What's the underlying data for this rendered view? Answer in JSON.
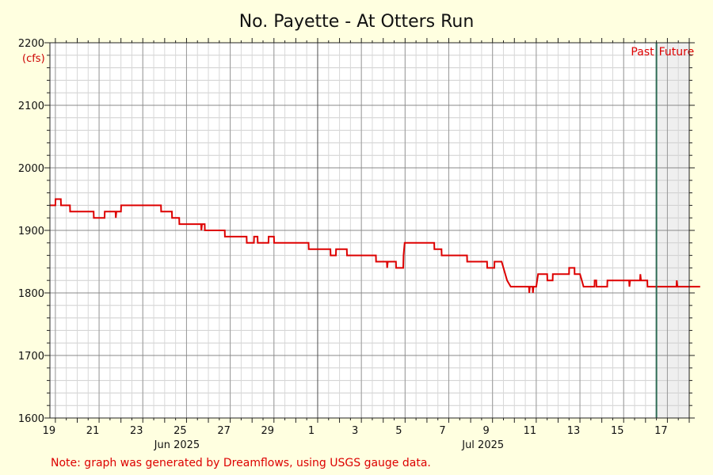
{
  "chart_data": {
    "type": "line",
    "title": "No. Payette - At Otters Run",
    "ylabel": "(cfs)",
    "xlabel": "",
    "ylim": [
      1600,
      2200
    ],
    "xlim": [
      "2025-06-18T18:00",
      "2025-07-18T00:00"
    ],
    "yticks": [
      1600,
      1700,
      1800,
      1900,
      2000,
      2100,
      2200
    ],
    "x_day_ticks": [
      {
        "date": "2025-06-19",
        "label": "19"
      },
      {
        "date": "2025-06-21",
        "label": "21"
      },
      {
        "date": "2025-06-23",
        "label": "23"
      },
      {
        "date": "2025-06-25",
        "label": "25"
      },
      {
        "date": "2025-06-27",
        "label": "27"
      },
      {
        "date": "2025-06-29",
        "label": "29"
      },
      {
        "date": "2025-07-01",
        "label": "1"
      },
      {
        "date": "2025-07-03",
        "label": "3"
      },
      {
        "date": "2025-07-05",
        "label": "5"
      },
      {
        "date": "2025-07-07",
        "label": "7"
      },
      {
        "date": "2025-07-09",
        "label": "9"
      },
      {
        "date": "2025-07-11",
        "label": "11"
      },
      {
        "date": "2025-07-13",
        "label": "13"
      },
      {
        "date": "2025-07-15",
        "label": "15"
      },
      {
        "date": "2025-07-17",
        "label": "17"
      }
    ],
    "x_month_labels": [
      {
        "date": "2025-06-25",
        "label": "Jun 2025"
      },
      {
        "date": "2025-07-09",
        "label": "Jul 2025"
      }
    ],
    "month_boundary": "2025-07-01",
    "now": "2025-07-16T12:00",
    "past_label": "Past",
    "future_label": "Future",
    "grid": true,
    "series": [
      {
        "color": "#dd0000",
        "points": [
          [
            "2025-06-18T18:00",
            1940
          ],
          [
            "2025-06-19T00:00",
            1940
          ],
          [
            "2025-06-19T00:10",
            1950
          ],
          [
            "2025-06-19T06:00",
            1950
          ],
          [
            "2025-06-19T06:10",
            1940
          ],
          [
            "2025-06-19T16:00",
            1940
          ],
          [
            "2025-06-19T16:10",
            1930
          ],
          [
            "2025-06-20T18:00",
            1930
          ],
          [
            "2025-06-20T18:10",
            1920
          ],
          [
            "2025-06-21T06:00",
            1920
          ],
          [
            "2025-06-21T06:10",
            1930
          ],
          [
            "2025-06-21T18:00",
            1930
          ],
          [
            "2025-06-21T18:20",
            1920
          ],
          [
            "2025-06-21T19:00",
            1930
          ],
          [
            "2025-06-22T00:00",
            1930
          ],
          [
            "2025-06-22T00:10",
            1940
          ],
          [
            "2025-06-23T20:00",
            1940
          ],
          [
            "2025-06-23T20:10",
            1930
          ],
          [
            "2025-06-24T08:00",
            1930
          ],
          [
            "2025-06-24T08:10",
            1920
          ],
          [
            "2025-06-24T16:00",
            1920
          ],
          [
            "2025-06-24T16:10",
            1910
          ],
          [
            "2025-06-25T16:00",
            1910
          ],
          [
            "2025-06-25T16:20",
            1900
          ],
          [
            "2025-06-25T17:00",
            1910
          ],
          [
            "2025-06-25T20:00",
            1910
          ],
          [
            "2025-06-25T20:10",
            1900
          ],
          [
            "2025-06-26T18:00",
            1900
          ],
          [
            "2025-06-26T18:10",
            1890
          ],
          [
            "2025-06-27T18:00",
            1890
          ],
          [
            "2025-06-27T18:10",
            1880
          ],
          [
            "2025-06-28T02:00",
            1880
          ],
          [
            "2025-06-28T02:10",
            1890
          ],
          [
            "2025-06-28T06:00",
            1890
          ],
          [
            "2025-06-28T06:10",
            1880
          ],
          [
            "2025-06-28T18:00",
            1880
          ],
          [
            "2025-06-28T18:10",
            1890
          ],
          [
            "2025-06-29T00:00",
            1890
          ],
          [
            "2025-06-29T00:10",
            1880
          ],
          [
            "2025-06-30T14:00",
            1880
          ],
          [
            "2025-06-30T14:10",
            1870
          ],
          [
            "2025-07-01T14:00",
            1870
          ],
          [
            "2025-07-01T14:10",
            1860
          ],
          [
            "2025-07-01T20:00",
            1860
          ],
          [
            "2025-07-01T20:10",
            1870
          ],
          [
            "2025-07-02T08:00",
            1870
          ],
          [
            "2025-07-02T08:10",
            1860
          ],
          [
            "2025-07-03T16:00",
            1860
          ],
          [
            "2025-07-03T16:10",
            1850
          ],
          [
            "2025-07-04T04:00",
            1850
          ],
          [
            "2025-07-04T04:20",
            1840
          ],
          [
            "2025-07-04T05:00",
            1850
          ],
          [
            "2025-07-04T14:00",
            1850
          ],
          [
            "2025-07-04T14:10",
            1840
          ],
          [
            "2025-07-04T22:00",
            1840
          ],
          [
            "2025-07-04T22:20",
            1860
          ],
          [
            "2025-07-04T23:30",
            1880
          ],
          [
            "2025-07-06T08:00",
            1880
          ],
          [
            "2025-07-06T08:10",
            1870
          ],
          [
            "2025-07-06T16:00",
            1870
          ],
          [
            "2025-07-06T16:10",
            1860
          ],
          [
            "2025-07-07T20:00",
            1860
          ],
          [
            "2025-07-07T20:10",
            1850
          ],
          [
            "2025-07-08T18:00",
            1850
          ],
          [
            "2025-07-08T18:10",
            1840
          ],
          [
            "2025-07-09T02:00",
            1840
          ],
          [
            "2025-07-09T02:10",
            1850
          ],
          [
            "2025-07-09T10:00",
            1850
          ],
          [
            "2025-07-09T12:00",
            1840
          ],
          [
            "2025-07-09T14:00",
            1830
          ],
          [
            "2025-07-09T16:00",
            1820
          ],
          [
            "2025-07-09T20:00",
            1810
          ],
          [
            "2025-07-10T16:00",
            1810
          ],
          [
            "2025-07-10T16:20",
            1800
          ],
          [
            "2025-07-10T17:00",
            1810
          ],
          [
            "2025-07-10T20:00",
            1810
          ],
          [
            "2025-07-10T20:20",
            1800
          ],
          [
            "2025-07-10T21:00",
            1810
          ],
          [
            "2025-07-11T00:00",
            1810
          ],
          [
            "2025-07-11T02:00",
            1830
          ],
          [
            "2025-07-11T12:00",
            1830
          ],
          [
            "2025-07-11T12:10",
            1820
          ],
          [
            "2025-07-11T18:00",
            1820
          ],
          [
            "2025-07-11T18:10",
            1830
          ],
          [
            "2025-07-12T12:00",
            1830
          ],
          [
            "2025-07-12T12:10",
            1840
          ],
          [
            "2025-07-12T18:00",
            1840
          ],
          [
            "2025-07-12T18:10",
            1830
          ],
          [
            "2025-07-13T00:00",
            1830
          ],
          [
            "2025-07-13T02:00",
            1820
          ],
          [
            "2025-07-13T04:00",
            1810
          ],
          [
            "2025-07-13T16:00",
            1810
          ],
          [
            "2025-07-13T16:10",
            1820
          ],
          [
            "2025-07-13T18:00",
            1820
          ],
          [
            "2025-07-13T18:10",
            1810
          ],
          [
            "2025-07-14T06:00",
            1810
          ],
          [
            "2025-07-14T06:10",
            1820
          ],
          [
            "2025-07-15T06:00",
            1820
          ],
          [
            "2025-07-15T06:20",
            1810
          ],
          [
            "2025-07-15T07:00",
            1820
          ],
          [
            "2025-07-15T18:00",
            1820
          ],
          [
            "2025-07-15T18:20",
            1830
          ],
          [
            "2025-07-15T19:00",
            1820
          ],
          [
            "2025-07-16T02:00",
            1820
          ],
          [
            "2025-07-16T02:10",
            1810
          ],
          [
            "2025-07-17T10:00",
            1810
          ],
          [
            "2025-07-17T10:20",
            1820
          ],
          [
            "2025-07-17T11:00",
            1810
          ],
          [
            "2025-07-18T12:00",
            1810
          ]
        ]
      }
    ]
  },
  "note": "Note: graph was generated by Dreamflows, using USGS gauge data.",
  "colors": {
    "background": "#ffffe0",
    "plot_background": "#ffffff",
    "future_shade": "#efefef",
    "series": "#dd0000",
    "now_line": "#2e6b55",
    "accent_text": "#dd0000"
  }
}
